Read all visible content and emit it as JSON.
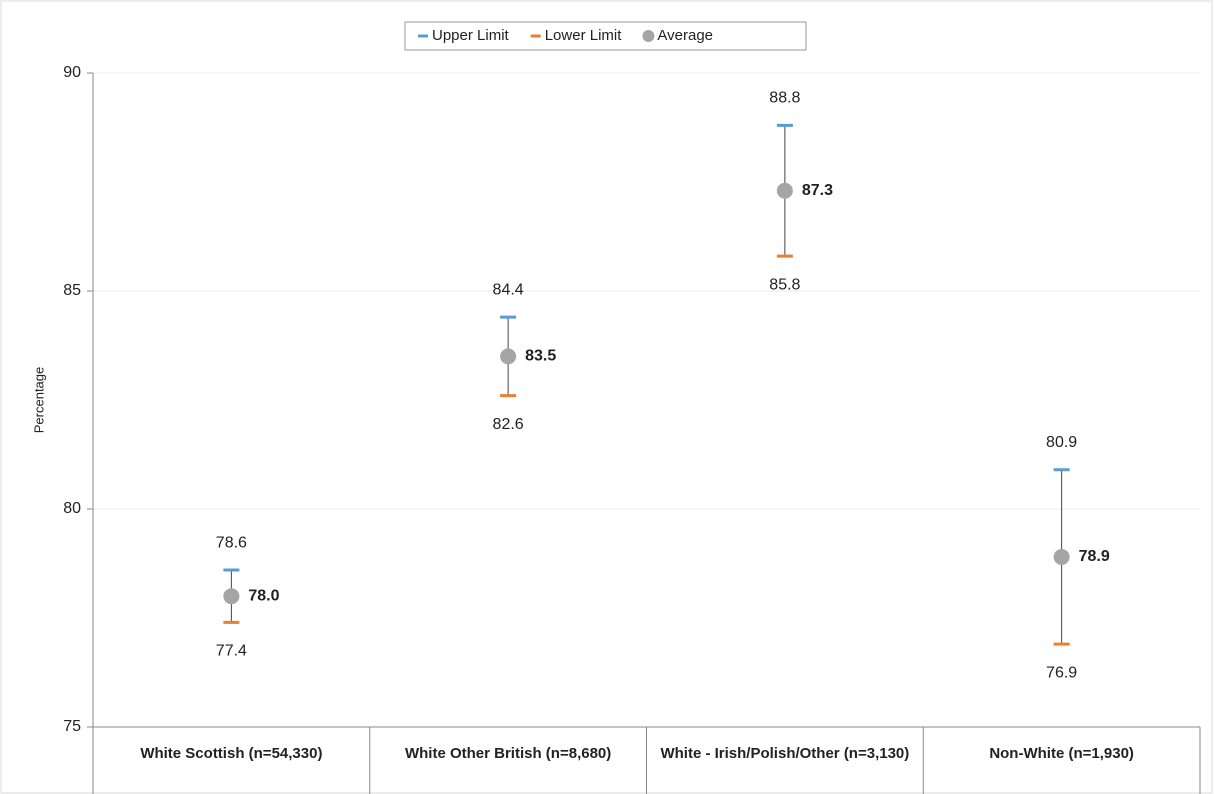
{
  "chart_data": {
    "type": "range-dot",
    "y_label": "Percentage",
    "categories": [
      "White Scottish (n=54,330)",
      "White Other British (n=8,680)",
      "White - Irish/Polish/Other (n=3,130)",
      "Non-White (n=1,930)"
    ],
    "series": [
      {
        "name": "Upper Limit",
        "color": "#5b9bd5",
        "values": [
          78.6,
          84.4,
          88.8,
          80.9
        ]
      },
      {
        "name": "Lower Limit",
        "color": "#ed7d31",
        "values": [
          77.4,
          82.6,
          85.8,
          76.9
        ]
      },
      {
        "name": "Average",
        "color": "#a5a5a5",
        "values": [
          78.0,
          83.5,
          87.3,
          78.9
        ],
        "value_labels": [
          "78.0",
          "83.5",
          "87.3",
          "78.9"
        ]
      }
    ],
    "ylim": [
      75,
      90
    ],
    "yticks": [
      75,
      80,
      85,
      90
    ],
    "grid": true,
    "legend": "top"
  }
}
